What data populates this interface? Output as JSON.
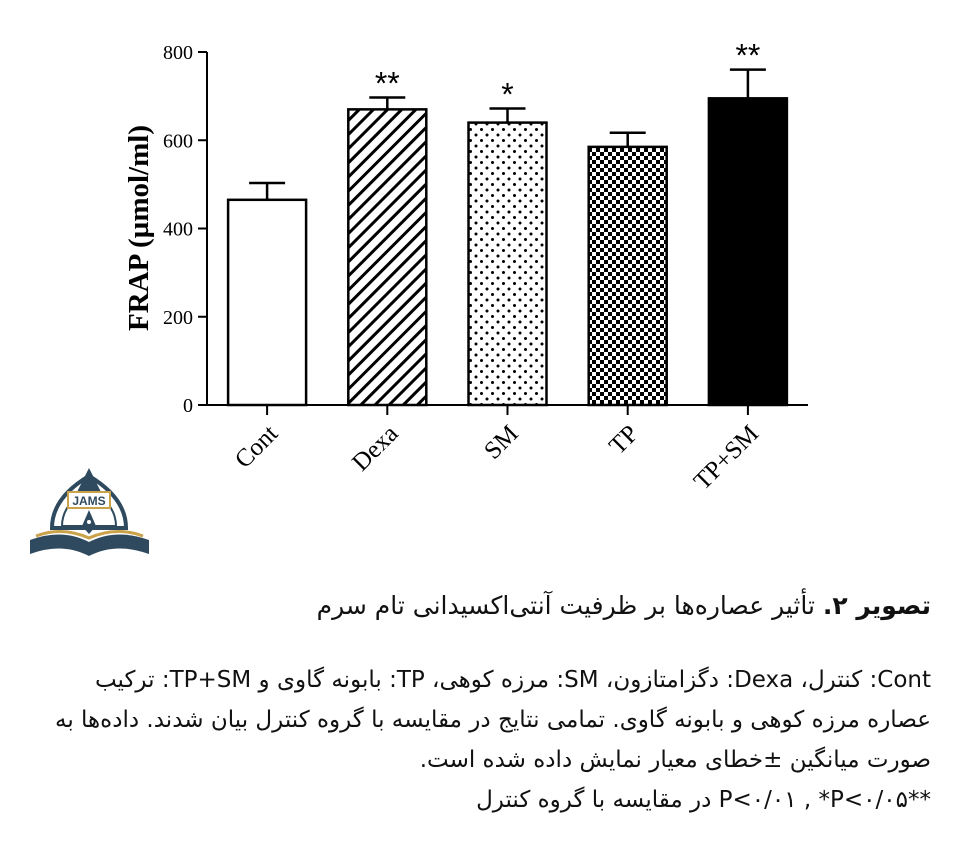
{
  "chart_data": {
    "type": "bar",
    "ylabel": "FRAP (µmol/ml)",
    "ylim": [
      0,
      800
    ],
    "yticks": [
      0,
      200,
      400,
      600,
      800
    ],
    "categories": [
      "Cont",
      "Dexa",
      "SM",
      "TP",
      "TP+SM"
    ],
    "values": [
      465,
      670,
      640,
      585,
      695
    ],
    "errors": [
      38,
      27,
      32,
      32,
      65
    ],
    "significance": [
      "",
      "**",
      "*",
      "",
      "**"
    ],
    "patterns": [
      "white",
      "diagonal-hatch",
      "dots",
      "checker",
      "black"
    ]
  },
  "logo": {
    "text": "JAMS"
  },
  "caption": {
    "figure_label": "تصویر ۲.",
    "figure_title": "تأثیر عصاره‌ها بر ظرفیت آنتی‌اکسیدانی تام سرم",
    "legend_parts": [
      {
        "abbr": "Cont",
        "desc": ": کنترل، "
      },
      {
        "abbr": "Dexa",
        "desc": ": دگزامتازون، "
      },
      {
        "abbr": "SM",
        "desc": ": مرزه کوهی، "
      },
      {
        "abbr": "TP",
        "desc": ": بابونه گاوی و "
      },
      {
        "abbr": "TP+SM",
        "desc": ": ترکیب عصاره مرزه کوهی و بابونه گاوی."
      }
    ],
    "sentence1": "تمامی نتایج در مقایسه با گروه کنترل بیان شدند.",
    "sentence2": "داده‌ها به صورت میانگین ±خطای معیار نمایش داده شده است.",
    "sig_line": "**P<۰/۰۱ , *P<۰/۰۵ در مقایسه با گروه کنترل"
  }
}
